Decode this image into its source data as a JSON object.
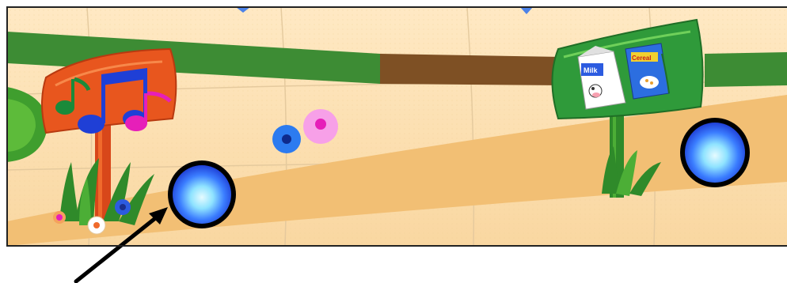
{
  "scene": {
    "background": "#fbe3b5",
    "path_color": "#f2c079",
    "grid_line_color": "#e1c79a",
    "stripe_green": "#3b8f35",
    "stripe_brown": "#7a4f22",
    "frame_color": "#222222"
  },
  "signs": {
    "music_sign": {
      "icon": "music-notes-icon",
      "board_color": "#e8561e"
    },
    "grocery_sign": {
      "icon": "grocery-icon",
      "board_color": "#2f9a3a",
      "milk_label": "Milk",
      "cereal_label": "Cereal"
    }
  },
  "game_pieces": [
    {
      "name": "blue-ball-left",
      "color": "#2f6cff"
    },
    {
      "name": "blue-ball-right",
      "color": "#2f6cff"
    }
  ],
  "annotation": {
    "arrow_icon": "pointer-arrow-icon",
    "color": "#000000"
  }
}
